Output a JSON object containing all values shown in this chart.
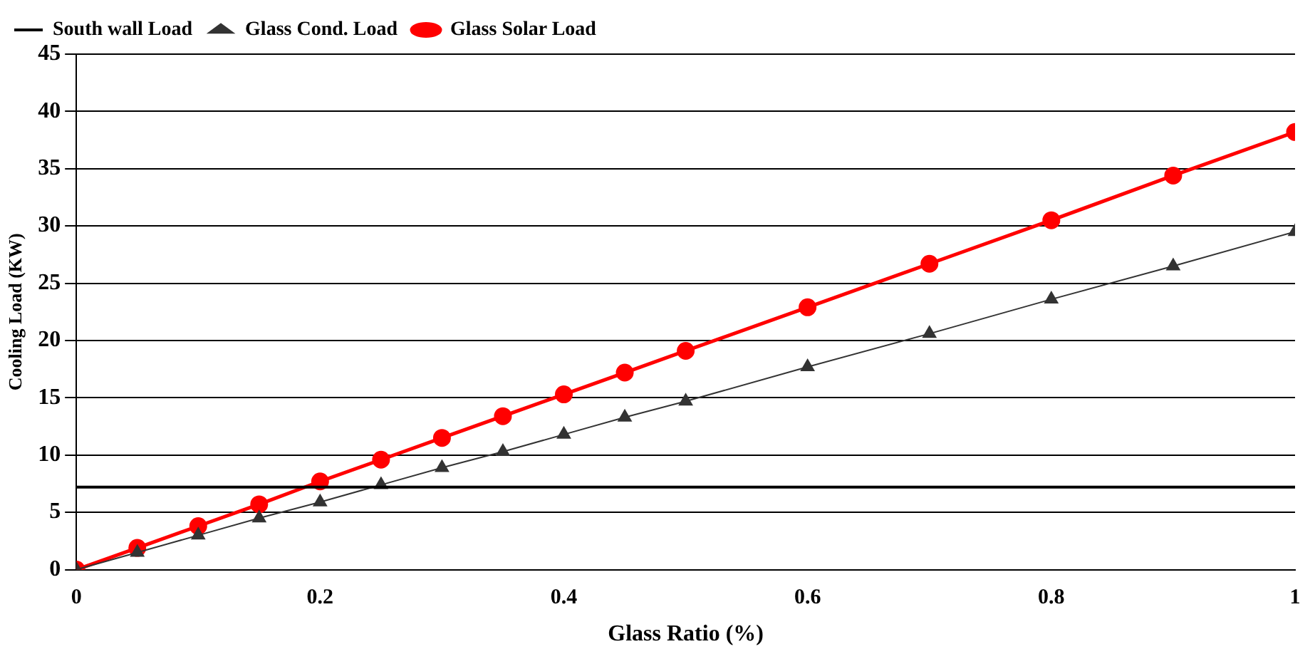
{
  "chart_data": {
    "type": "line",
    "xlabel": "Glass Ratio (%)",
    "ylabel": "Cooling Load (KW)",
    "x": [
      0,
      0.05,
      0.1,
      0.15,
      0.2,
      0.25,
      0.3,
      0.35,
      0.4,
      0.45,
      0.5,
      0.6,
      0.7,
      0.8,
      0.9,
      1
    ],
    "series": [
      {
        "name": "South wall Load",
        "color": "#000000",
        "marker": "none",
        "x": [
          0,
          1
        ],
        "values": [
          7.2,
          7.2
        ]
      },
      {
        "name": "Glass Cond. Load",
        "color": "#333333",
        "marker": "triangle",
        "values": [
          0,
          1.5,
          3.0,
          4.5,
          5.9,
          7.4,
          8.9,
          10.3,
          11.8,
          13.3,
          14.7,
          17.7,
          20.6,
          23.6,
          26.5,
          29.5
        ]
      },
      {
        "name": "Glass Solar Load",
        "color": "#ff0000",
        "marker": "circle",
        "values": [
          0,
          1.9,
          3.8,
          5.7,
          7.7,
          9.6,
          11.5,
          13.4,
          15.3,
          17.2,
          19.1,
          22.9,
          26.7,
          30.5,
          34.4,
          38.2
        ]
      }
    ],
    "xlim": [
      0,
      1
    ],
    "xticks": [
      0,
      0.2,
      0.4,
      0.6,
      0.8,
      1
    ],
    "ylim": [
      0,
      45
    ],
    "yticks": [
      0,
      5,
      10,
      15,
      20,
      25,
      30,
      35,
      40,
      45
    ],
    "grid": "y",
    "legend": "top left",
    "line_style": "solid"
  }
}
